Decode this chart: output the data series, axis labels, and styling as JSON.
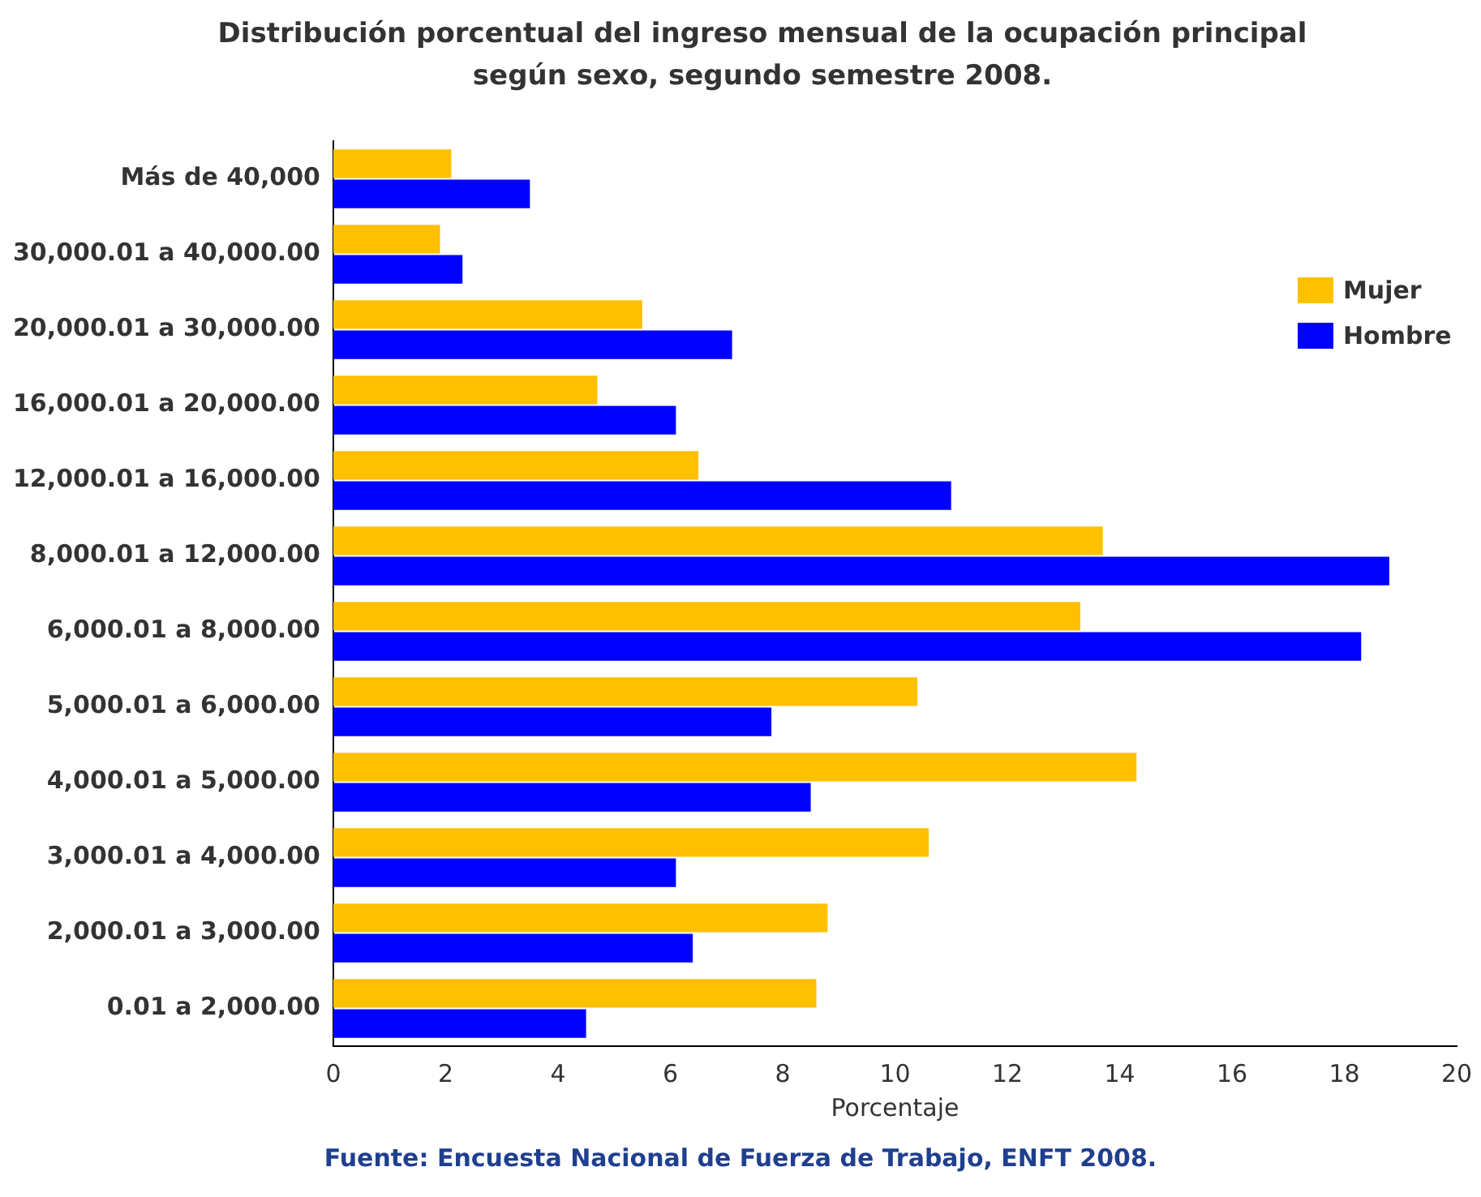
{
  "chart_data": {
    "type": "bar",
    "orientation": "horizontal",
    "title": "Distribución porcentual del ingreso mensual de la ocupación principal según sexo, segundo semestre 2008.",
    "xlabel": "Porcentaje",
    "categories": [
      "Más de 40,000",
      "30,000.01 a 40,000.00",
      "20,000.01 a 30,000.00",
      "16,000.01 a 20,000.00",
      "12,000.01 a 16,000.00",
      "8,000.01 a 12,000.00",
      "6,000.01 a 8,000.00",
      "5,000.01 a 6,000.00",
      "4,000.01 a 5,000.00",
      "3,000.01 a 4,000.00",
      "2,000.01 a 3,000.00",
      "0.01 a 2,000.00"
    ],
    "series": [
      {
        "name": "Mujer",
        "color": "#ffc000",
        "values": [
          2.1,
          1.9,
          5.5,
          4.7,
          6.5,
          13.7,
          13.3,
          10.4,
          14.3,
          10.6,
          8.8,
          8.6
        ]
      },
      {
        "name": "Hombre",
        "color": "#0000ff",
        "values": [
          3.5,
          2.3,
          7.1,
          6.1,
          11.0,
          18.8,
          18.3,
          7.8,
          8.5,
          6.1,
          6.4,
          4.5
        ]
      }
    ],
    "xlim": [
      0,
      20
    ],
    "xticks": [
      0,
      2,
      4,
      6,
      8,
      10,
      12,
      14,
      16,
      18,
      20
    ],
    "grid": false,
    "legend": "top right",
    "annotations": [
      "Fuente: Encuesta Nacional de Fuerza de Trabajo, ENFT 2008."
    ]
  }
}
